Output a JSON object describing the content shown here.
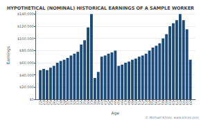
{
  "chart_data": {
    "type": "bar",
    "title": "HYPOTHETICAL (NOMINAL) HISTORICAL EARNINGS OF A SAMPLE WORKER",
    "xlabel": "Age",
    "ylabel": "Earnings",
    "annotations": [
      "© Michael Kitces, www.kitces.com"
    ],
    "x": [
      22,
      23,
      24,
      25,
      26,
      27,
      28,
      29,
      30,
      31,
      32,
      33,
      34,
      35,
      36,
      37,
      38,
      39,
      40,
      41,
      42,
      43,
      44,
      45,
      46,
      47,
      48,
      49,
      50,
      51,
      52,
      53,
      54,
      55,
      56,
      57,
      58,
      59,
      60,
      61,
      62,
      63,
      64,
      65,
      66
    ],
    "values": [
      48000,
      50000,
      48000,
      52000,
      55000,
      60000,
      63000,
      65000,
      68000,
      72000,
      75000,
      78000,
      90000,
      97000,
      118000,
      140000,
      35000,
      45000,
      70000,
      72000,
      75000,
      77000,
      80000,
      55000,
      57000,
      60000,
      62000,
      65000,
      67000,
      70000,
      72000,
      75000,
      80000,
      85000,
      88000,
      92000,
      100000,
      107000,
      120000,
      125000,
      130000,
      140000,
      130000,
      115000,
      65000
    ],
    "color": "#1a4a7a",
    "xlim": [
      20.5,
      67.5
    ],
    "xticks": [
      22,
      23,
      24,
      25,
      26,
      27,
      28,
      29,
      30,
      31,
      32,
      33,
      34,
      35,
      36,
      37,
      38,
      39,
      40,
      41,
      42,
      43,
      44,
      45,
      46,
      47,
      48,
      49,
      50,
      51,
      52,
      53,
      54,
      55,
      56,
      57,
      58,
      59,
      60,
      61,
      62,
      63,
      64,
      65,
      66
    ],
    "ylim": [
      0,
      145000
    ],
    "yticks": [
      {
        "value": 0,
        "label": "$0"
      },
      {
        "value": 20000,
        "label": "$20,000"
      },
      {
        "value": 40000,
        "label": "$40,000"
      },
      {
        "value": 60000,
        "label": "$60,000"
      },
      {
        "value": 80000,
        "label": "$80,000"
      },
      {
        "value": 100000,
        "label": "$100,000"
      },
      {
        "value": 120000,
        "label": "$120,000"
      },
      {
        "value": 140000,
        "label": "$140,000"
      }
    ],
    "grid": true
  }
}
